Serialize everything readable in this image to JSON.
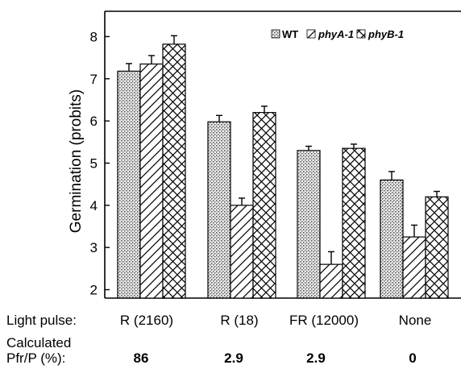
{
  "chart_data": {
    "type": "bar",
    "ylabel": "Germination (probits)",
    "ylim": [
      1.8,
      8.6
    ],
    "yticks": [
      2,
      3,
      4,
      5,
      6,
      7,
      8
    ],
    "categories": [
      "R (2160)",
      "R (18)",
      "FR (12000)",
      "None"
    ],
    "series": [
      {
        "name": "WT",
        "pattern": "stipple",
        "values": [
          7.18,
          5.98,
          5.3,
          4.6
        ],
        "errors": [
          0.18,
          0.15,
          0.1,
          0.2
        ]
      },
      {
        "name": "phyA-1",
        "pattern": "diagonal",
        "values": [
          7.35,
          4.0,
          2.6,
          3.25
        ],
        "errors": [
          0.2,
          0.17,
          0.3,
          0.28
        ]
      },
      {
        "name": "phyB-1",
        "pattern": "crosshatch",
        "values": [
          7.82,
          6.2,
          5.35,
          4.2
        ],
        "errors": [
          0.2,
          0.15,
          0.1,
          0.13
        ]
      }
    ],
    "legend": {
      "position": "top-right"
    },
    "grid": false
  },
  "footer": {
    "light_pulse_label": "Light pulse:",
    "calculated_label_line1": "Calculated",
    "calculated_label_line2": "Pfr/P (%):",
    "pfr_values": [
      "86",
      "2.9",
      "2.9",
      "0"
    ]
  }
}
